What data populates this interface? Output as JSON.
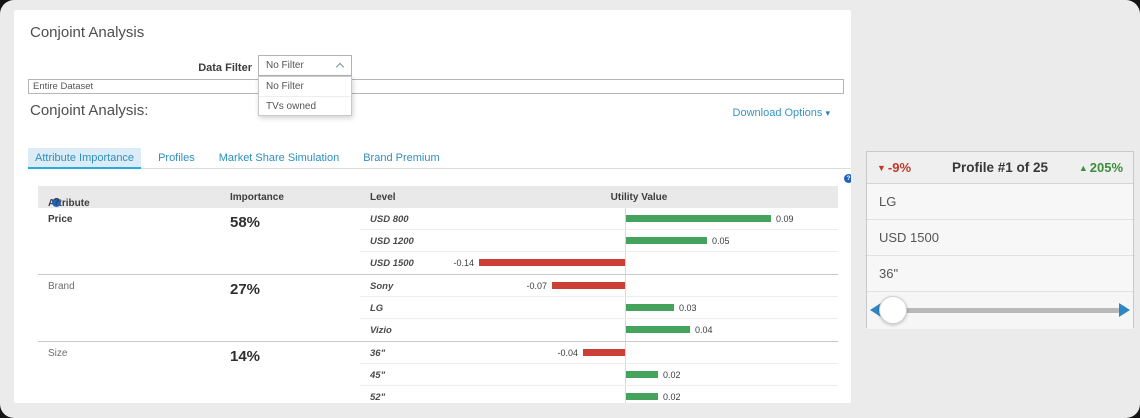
{
  "window": {
    "title": "Conjoint Analysis"
  },
  "filter": {
    "label": "Data Filter",
    "selected": "No Filter",
    "options": [
      "No Filter",
      "TVs owned"
    ]
  },
  "dataset": {
    "value": "Entire Dataset"
  },
  "section": {
    "title": "Conjoint Analysis:",
    "download_label": "Download Options",
    "download_caret": "▾"
  },
  "tabs": [
    {
      "label": "Attribute Importance",
      "active": true
    },
    {
      "label": "Profiles",
      "active": false
    },
    {
      "label": "Market Share Simulation",
      "active": false
    },
    {
      "label": "Brand Premium",
      "active": false
    }
  ],
  "table": {
    "headers": {
      "attribute": "Attribute",
      "importance": "Importance",
      "level": "Level",
      "utility": "Utility Value"
    },
    "groups": [
      {
        "attribute": "Price",
        "importance": "58%",
        "emphasis": true,
        "levels": [
          {
            "label": "USD 800",
            "value": 0.09,
            "value_label": "0.09"
          },
          {
            "label": "USD 1200",
            "value": 0.05,
            "value_label": "0.05"
          },
          {
            "label": "USD 1500",
            "value": -0.14,
            "value_label": "-0.14"
          }
        ]
      },
      {
        "attribute": "Brand",
        "importance": "27%",
        "emphasis": false,
        "levels": [
          {
            "label": "Sony",
            "value": -0.07,
            "value_label": "-0.07"
          },
          {
            "label": "LG",
            "value": 0.03,
            "value_label": "0.03"
          },
          {
            "label": "Vizio",
            "value": 0.04,
            "value_label": "0.04"
          }
        ]
      },
      {
        "attribute": "Size",
        "importance": "14%",
        "emphasis": false,
        "levels": [
          {
            "label": "36\"",
            "value": -0.04,
            "value_label": "-0.04"
          },
          {
            "label": "45\"",
            "value": 0.02,
            "value_label": "0.02"
          },
          {
            "label": "52\"",
            "value": 0.02,
            "value_label": "0.02"
          }
        ]
      }
    ]
  },
  "chart_data": {
    "type": "bar",
    "orientation": "horizontal",
    "title": "Utility Value",
    "categories": [
      "USD 800",
      "USD 1200",
      "USD 1500",
      "Sony",
      "LG",
      "Vizio",
      "36\"",
      "45\"",
      "52\""
    ],
    "values": [
      0.09,
      0.05,
      -0.14,
      -0.07,
      0.03,
      0.04,
      -0.04,
      0.02,
      0.02
    ],
    "groups": [
      "Price",
      "Price",
      "Price",
      "Brand",
      "Brand",
      "Brand",
      "Size",
      "Size",
      "Size"
    ],
    "baseline": 0,
    "positive_color": "#46a35e",
    "negative_color": "#cb3f36"
  },
  "profile_panel": {
    "decrease_label": "-9%",
    "decrease_arrow": "▼",
    "title": "Profile #1 of 25",
    "increase_label": "205%",
    "increase_arrow": "▲",
    "items": [
      "LG",
      "USD 1500",
      "36\""
    ]
  },
  "colors": {
    "positive": "#46a35e",
    "negative": "#cb3f36",
    "accent_blue": "#3595c6",
    "slider_blue": "#2f86c4",
    "decrease_red": "#c0392b",
    "increase_green": "#3c8e3a"
  }
}
